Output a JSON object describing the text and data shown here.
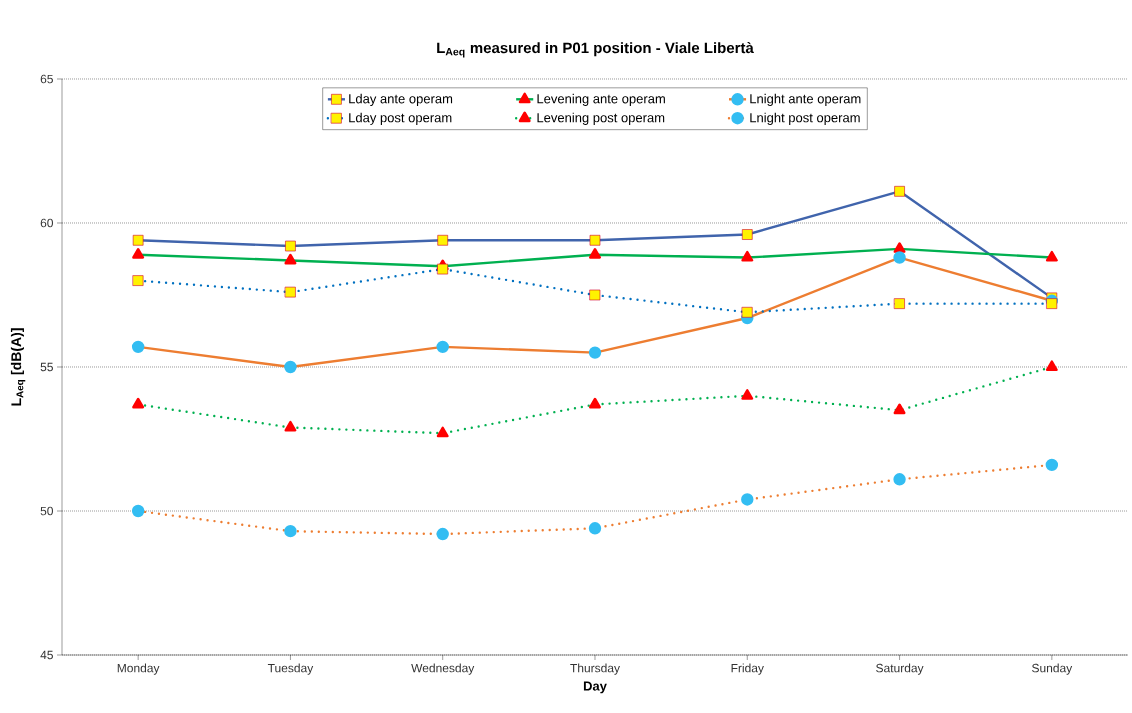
{
  "chart_data": {
    "type": "line",
    "title": "L$_{Aeq}$ measured in P01 position - Viale Libertà",
    "xlabel": "Day",
    "ylabel": "L$_{Aeq}$ [dB(A)]",
    "categories": [
      "Monday",
      "Tuesday",
      "Wednesday",
      "Thursday",
      "Friday",
      "Saturday",
      "Sunday"
    ],
    "ylim": [
      45,
      65
    ],
    "yticks": [
      45,
      50,
      55,
      60,
      65
    ],
    "grid": "y",
    "legend": "top",
    "series": [
      {
        "name": "Lday ante operam",
        "color": "#4064ac",
        "marker": "square",
        "line_style": "solid",
        "values": [
          59.4,
          59.2,
          59.4,
          59.4,
          59.6,
          61.1,
          57.4
        ]
      },
      {
        "name": "Levening ante operam",
        "color": "#00b050",
        "marker": "triangle",
        "line_style": "solid",
        "values": [
          58.9,
          58.7,
          58.5,
          58.9,
          58.8,
          59.1,
          58.8
        ]
      },
      {
        "name": "Lnight ante operam",
        "color": "#ed7d31",
        "marker": "circle",
        "line_style": "solid",
        "values": [
          55.7,
          55.0,
          55.7,
          55.5,
          56.7,
          58.8,
          57.3
        ]
      },
      {
        "name": "Lday post operam",
        "color": "#0070c0",
        "marker": "square",
        "line_style": "dotted",
        "values": [
          58.0,
          57.6,
          58.4,
          57.5,
          56.9,
          57.2,
          57.2
        ]
      },
      {
        "name": "Levening post operam",
        "color": "#00b050",
        "marker": "triangle",
        "line_style": "dotted",
        "values": [
          53.7,
          52.9,
          52.7,
          53.7,
          54.0,
          53.5,
          55.0
        ]
      },
      {
        "name": "Lnight post operam",
        "color": "#ed7d31",
        "marker": "circle",
        "line_style": "dotted",
        "values": [
          50.0,
          49.3,
          49.2,
          49.4,
          50.4,
          51.1,
          51.6
        ]
      }
    ]
  }
}
